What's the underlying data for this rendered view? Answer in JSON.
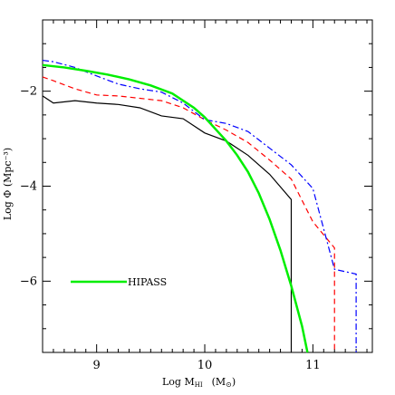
{
  "chart_data": {
    "type": "line",
    "xlabel": "Log M",
    "xlabel_sub": "HI",
    "xlabel_units": "(M",
    "xlabel_units_sub": "⊙",
    "xlabel_units_close": ")",
    "ylabel": "Log Φ (Mpc⁻³)",
    "xlim": [
      8.5,
      11.55
    ],
    "ylim": [
      -7.5,
      -0.5
    ],
    "xticks_major": [
      9,
      10,
      11
    ],
    "yticks_major": [
      -2,
      -4,
      -6
    ],
    "grid": false,
    "series": [
      {
        "style": "solid-black",
        "color": "#000000",
        "x": [
          8.5,
          8.6,
          8.8,
          9.0,
          9.2,
          9.4,
          9.6,
          9.8,
          10.0,
          10.2,
          10.4,
          10.6,
          10.8,
          10.8
        ],
        "y": [
          -2.1,
          -2.25,
          -2.2,
          -2.25,
          -2.28,
          -2.35,
          -2.52,
          -2.58,
          -2.88,
          -3.05,
          -3.35,
          -3.75,
          -4.28,
          -7.5
        ]
      },
      {
        "style": "dashed-red",
        "color": "#ff0000",
        "x": [
          8.5,
          8.6,
          8.8,
          9.0,
          9.2,
          9.4,
          9.6,
          9.8,
          10.0,
          10.2,
          10.4,
          10.6,
          10.8,
          11.0,
          11.2,
          11.2
        ],
        "y": [
          -1.7,
          -1.78,
          -1.95,
          -2.08,
          -2.1,
          -2.15,
          -2.2,
          -2.35,
          -2.6,
          -2.82,
          -3.08,
          -3.45,
          -3.85,
          -4.75,
          -5.3,
          -7.5
        ]
      },
      {
        "style": "dashdot-blue",
        "color": "#0000ff",
        "x": [
          8.5,
          8.6,
          8.8,
          9.0,
          9.2,
          9.4,
          9.6,
          9.8,
          10.0,
          10.2,
          10.4,
          10.6,
          10.8,
          11.0,
          11.2,
          11.4,
          11.4
        ],
        "y": [
          -1.35,
          -1.38,
          -1.5,
          -1.68,
          -1.85,
          -1.95,
          -2.02,
          -2.25,
          -2.6,
          -2.68,
          -2.85,
          -3.2,
          -3.55,
          -4.05,
          -5.75,
          -5.85,
          -7.5
        ]
      },
      {
        "name": "HIPASS",
        "style": "solid-green",
        "color": "#00ee00",
        "x": [
          8.5,
          8.7,
          8.9,
          9.1,
          9.3,
          9.5,
          9.7,
          9.9,
          10.0,
          10.1,
          10.2,
          10.3,
          10.4,
          10.5,
          10.6,
          10.7,
          10.8,
          10.9,
          10.95
        ],
        "y": [
          -1.45,
          -1.5,
          -1.57,
          -1.65,
          -1.75,
          -1.88,
          -2.05,
          -2.35,
          -2.55,
          -2.8,
          -3.05,
          -3.35,
          -3.7,
          -4.15,
          -4.7,
          -5.35,
          -6.1,
          -6.95,
          -7.5
        ]
      }
    ],
    "legend": {
      "label": "HIPASS",
      "position": "bottom-left"
    }
  }
}
